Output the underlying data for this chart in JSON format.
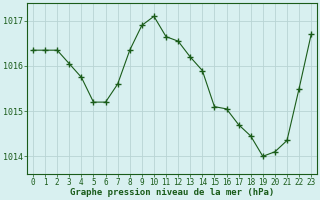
{
  "x": [
    0,
    1,
    2,
    3,
    4,
    5,
    6,
    7,
    8,
    9,
    10,
    11,
    12,
    13,
    14,
    15,
    16,
    17,
    18,
    19,
    20,
    21,
    22,
    23
  ],
  "y": [
    1016.35,
    1016.35,
    1016.35,
    1016.05,
    1015.75,
    1015.2,
    1015.2,
    1015.6,
    1016.35,
    1016.9,
    1017.1,
    1016.65,
    1016.55,
    1016.2,
    1015.9,
    1015.1,
    1015.05,
    1014.7,
    1014.45,
    1014.0,
    1014.1,
    1014.35,
    1015.5,
    1016.7
  ],
  "line_color": "#1a5c1a",
  "marker": "+",
  "marker_size": 4,
  "bg_color": "#d8f0f0",
  "grid_color": "#b8d4d4",
  "xlabel": "Graphe pression niveau de la mer (hPa)",
  "xlabel_fontsize": 6.5,
  "tick_fontsize": 5.5,
  "ytick_fontsize": 6.0,
  "yticks": [
    1014,
    1015,
    1016,
    1017
  ],
  "xticks": [
    0,
    1,
    2,
    3,
    4,
    5,
    6,
    7,
    8,
    9,
    10,
    11,
    12,
    13,
    14,
    15,
    16,
    17,
    18,
    19,
    20,
    21,
    22,
    23
  ],
  "ylim": [
    1013.6,
    1017.4
  ],
  "xlim": [
    -0.5,
    23.5
  ]
}
